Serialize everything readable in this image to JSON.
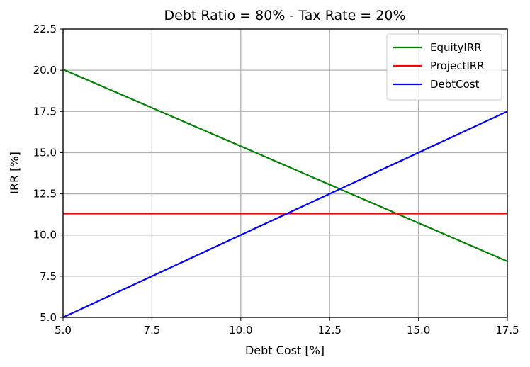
{
  "chart_data": {
    "type": "line",
    "title": "Debt Ratio = 80% - Tax Rate = 20%",
    "xlabel": "Debt Cost [%]",
    "ylabel": "IRR [%]",
    "xlim": [
      5.0,
      17.5
    ],
    "ylim": [
      5.0,
      22.5
    ],
    "xticks": [
      5.0,
      7.5,
      10.0,
      12.5,
      15.0,
      17.5
    ],
    "xtick_labels": [
      "5.0",
      "7.5",
      "10.0",
      "12.5",
      "15.0",
      "17.5"
    ],
    "yticks": [
      5.0,
      7.5,
      10.0,
      12.5,
      15.0,
      17.5,
      20.0,
      22.5
    ],
    "ytick_labels": [
      "5.0",
      "7.5",
      "10.0",
      "12.5",
      "15.0",
      "17.5",
      "20.0",
      "22.5"
    ],
    "grid": true,
    "legend_position": "top-right",
    "series": [
      {
        "name": "EquityIRR",
        "color": "#008000",
        "x": [
          5.0,
          17.5
        ],
        "y": [
          20.05,
          8.4
        ]
      },
      {
        "name": "ProjectIRR",
        "color": "#ff0000",
        "x": [
          5.0,
          17.5
        ],
        "y": [
          11.3,
          11.3
        ]
      },
      {
        "name": "DebtCost",
        "color": "#0000ff",
        "x": [
          5.0,
          17.5
        ],
        "y": [
          5.0,
          17.5
        ]
      }
    ]
  }
}
